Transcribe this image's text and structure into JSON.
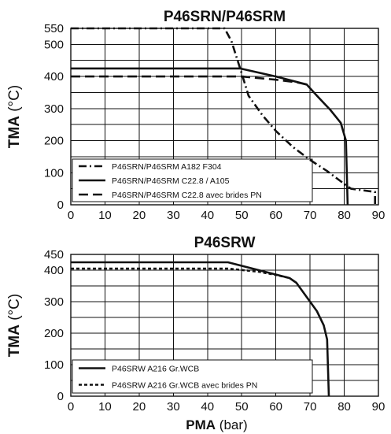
{
  "chart_data": [
    {
      "type": "line",
      "title": "P46SRN/P46SRM",
      "ylabel_main": "TMA",
      "ylabel_unit": " (°C)",
      "xlim": [
        0,
        90
      ],
      "ylim": [
        0,
        550
      ],
      "xticks": [
        0,
        10,
        20,
        30,
        40,
        50,
        60,
        70,
        80,
        90
      ],
      "yticks": [
        0,
        100,
        200,
        300,
        400,
        500,
        550
      ],
      "grid_y": [
        0,
        50,
        100,
        150,
        200,
        250,
        300,
        350,
        400,
        450,
        500,
        550
      ],
      "series": [
        {
          "name": "P46SRN/P46SRM A182 F304",
          "dash": "dashdot",
          "points": [
            [
              0,
              550
            ],
            [
              45,
              550
            ],
            [
              47,
              510
            ],
            [
              48.5,
              460
            ],
            [
              50,
              410
            ],
            [
              52,
              340
            ],
            [
              56,
              280
            ],
            [
              60,
              230
            ],
            [
              65,
              180
            ],
            [
              70,
              140
            ],
            [
              75,
              105
            ],
            [
              80,
              65
            ],
            [
              82,
              50
            ],
            [
              89,
              40
            ],
            [
              89,
              0
            ]
          ]
        },
        {
          "name": "P46SRN/P46SRM C22.8 / A105",
          "dash": "solid",
          "points": [
            [
              0,
              425
            ],
            [
              49.5,
              425
            ],
            [
              60,
              400
            ],
            [
              69,
              375
            ],
            [
              72,
              340
            ],
            [
              76,
              295
            ],
            [
              79,
              255
            ],
            [
              80.5,
              200
            ],
            [
              81,
              0
            ]
          ]
        },
        {
          "name": "P46SRN/P46SRM C22.8 avec brides PN",
          "dash": "dashed",
          "points": [
            [
              0,
              400
            ],
            [
              50,
              400
            ],
            [
              60,
              390
            ],
            [
              66,
              382
            ],
            [
              69,
              375
            ]
          ]
        }
      ]
    },
    {
      "type": "line",
      "title": "P46SRW",
      "ylabel_main": "TMA",
      "ylabel_unit": " (°C)",
      "xlabel_main": "PMA",
      "xlabel_unit": " (bar)",
      "xlim": [
        0,
        90
      ],
      "ylim": [
        0,
        450
      ],
      "xticks": [
        0,
        10,
        20,
        30,
        40,
        50,
        60,
        70,
        80,
        90
      ],
      "yticks": [
        0,
        100,
        200,
        300,
        400,
        450
      ],
      "grid_y": [
        0,
        50,
        100,
        150,
        200,
        250,
        300,
        350,
        400,
        450
      ],
      "series": [
        {
          "name": "P46SRW A216 Gr.WCB",
          "dash": "solid",
          "points": [
            [
              0,
              425
            ],
            [
              46,
              425
            ],
            [
              55,
              400
            ],
            [
              64,
              375
            ],
            [
              66,
              360
            ],
            [
              68,
              330
            ],
            [
              70,
              300
            ],
            [
              72,
              270
            ],
            [
              74,
              225
            ],
            [
              75,
              180
            ],
            [
              75.5,
              0
            ]
          ]
        },
        {
          "name": "P46SRW A216 Gr.WCB avec brides PN",
          "dash": "dotted",
          "points": [
            [
              0,
              405
            ],
            [
              46,
              405
            ],
            [
              55,
              395
            ],
            [
              60,
              385
            ],
            [
              64,
              375
            ]
          ]
        }
      ]
    }
  ]
}
